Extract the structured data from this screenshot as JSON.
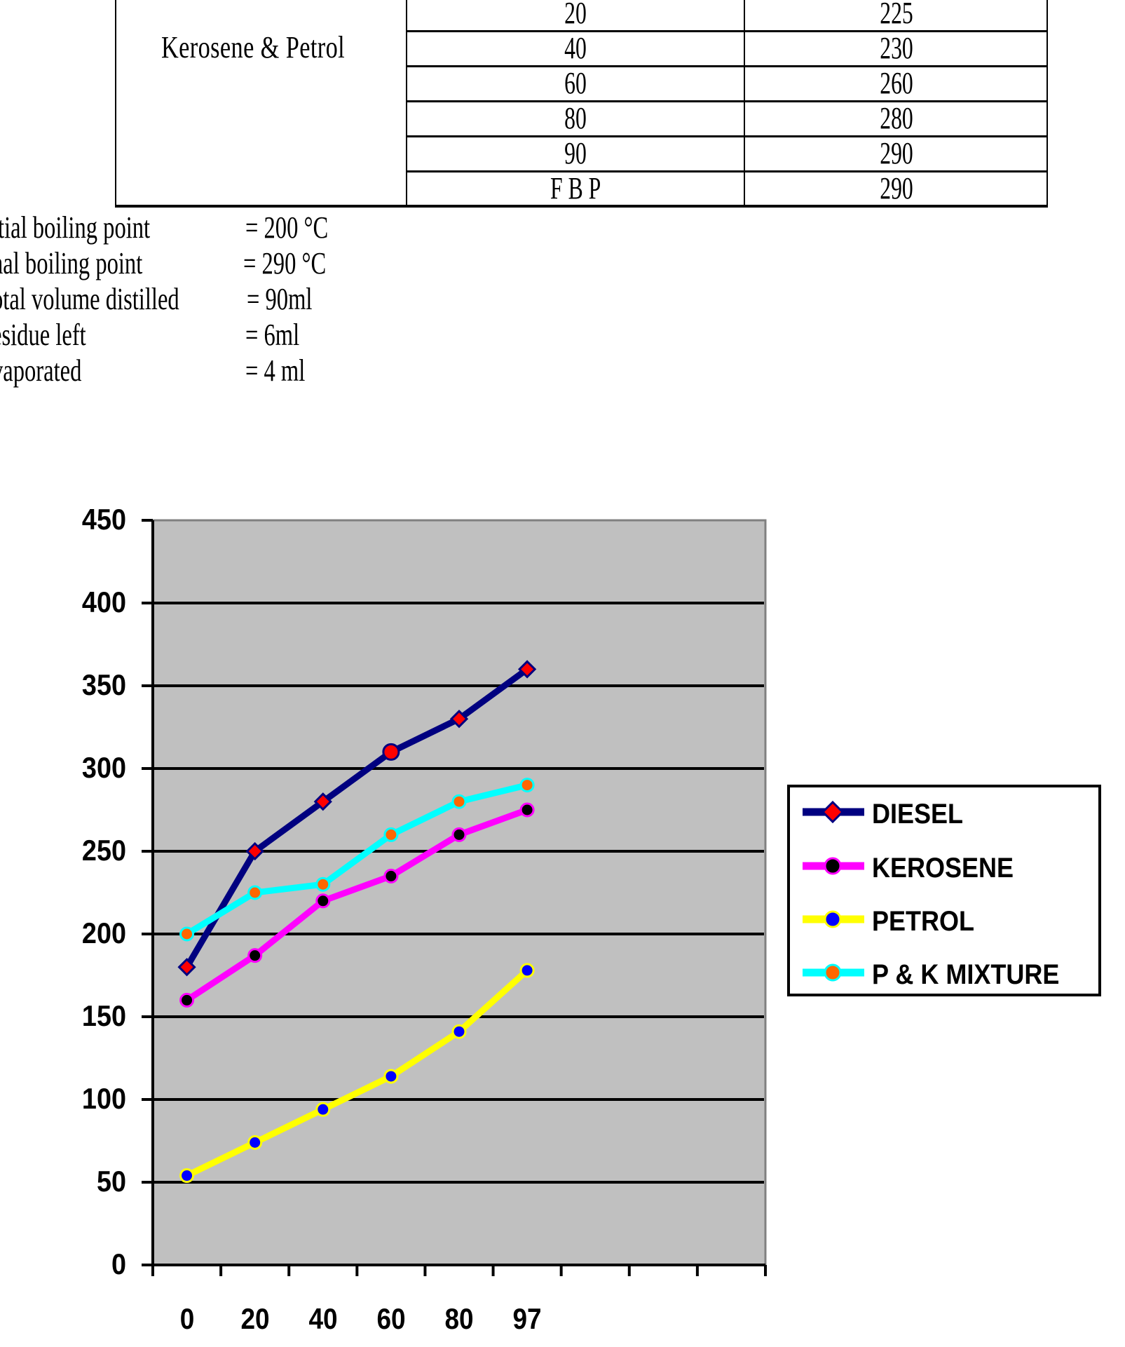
{
  "table": {
    "sample": "Kerosene & Petrol",
    "rows": [
      {
        "volume": "20",
        "temp": "225"
      },
      {
        "volume": "40",
        "temp": "230"
      },
      {
        "volume": "60",
        "temp": "260"
      },
      {
        "volume": "80",
        "temp": "280"
      },
      {
        "volume": "90",
        "temp": "290"
      },
      {
        "volume": "F B P",
        "temp": "290"
      }
    ]
  },
  "summary": [
    {
      "label": "itial boiling point",
      "value": "= 200 °C"
    },
    {
      "label": "nal  boiling point",
      "value": "= 290 °C"
    },
    {
      "label": "otal volume distilled",
      "value": "= 90ml"
    },
    {
      "label": "esidue left",
      "value": "= 6ml"
    },
    {
      "label": "vaporated",
      "value": "= 4 ml"
    }
  ],
  "chart_data": {
    "type": "line",
    "title": "",
    "xlabel": "",
    "ylabel": "",
    "categories": [
      "0",
      "20",
      "40",
      "60",
      "80",
      "97"
    ],
    "ylim": [
      0,
      450
    ],
    "yticks": [
      0,
      50,
      100,
      150,
      200,
      250,
      300,
      350,
      400,
      450
    ],
    "grid": true,
    "plot_background": "#c0c0c0",
    "legend_position": "right",
    "series": [
      {
        "name": "DIESEL",
        "values": [
          180,
          250,
          280,
          310,
          330,
          360
        ],
        "line_color": "#000080",
        "marker": "diamond",
        "marker_fill": "#ff0000",
        "marker_edge": "#000080"
      },
      {
        "name": "KEROSENE",
        "values": [
          160,
          187,
          220,
          235,
          260,
          275
        ],
        "line_color": "#ff00ff",
        "marker": "circle",
        "marker_fill": "#000000",
        "marker_edge": "#ff00ff"
      },
      {
        "name": "PETROL",
        "values": [
          54,
          74,
          94,
          114,
          141,
          178
        ],
        "line_color": "#ffff00",
        "marker": "circle",
        "marker_fill": "#0000ff",
        "marker_edge": "#ffff00"
      },
      {
        "name": "P & K MIXTURE",
        "values": [
          200,
          225,
          230,
          260,
          280,
          290
        ],
        "line_color": "#00ffff",
        "marker": "circle",
        "marker_fill": "#ff6600",
        "marker_edge": "#00ffff"
      }
    ]
  }
}
